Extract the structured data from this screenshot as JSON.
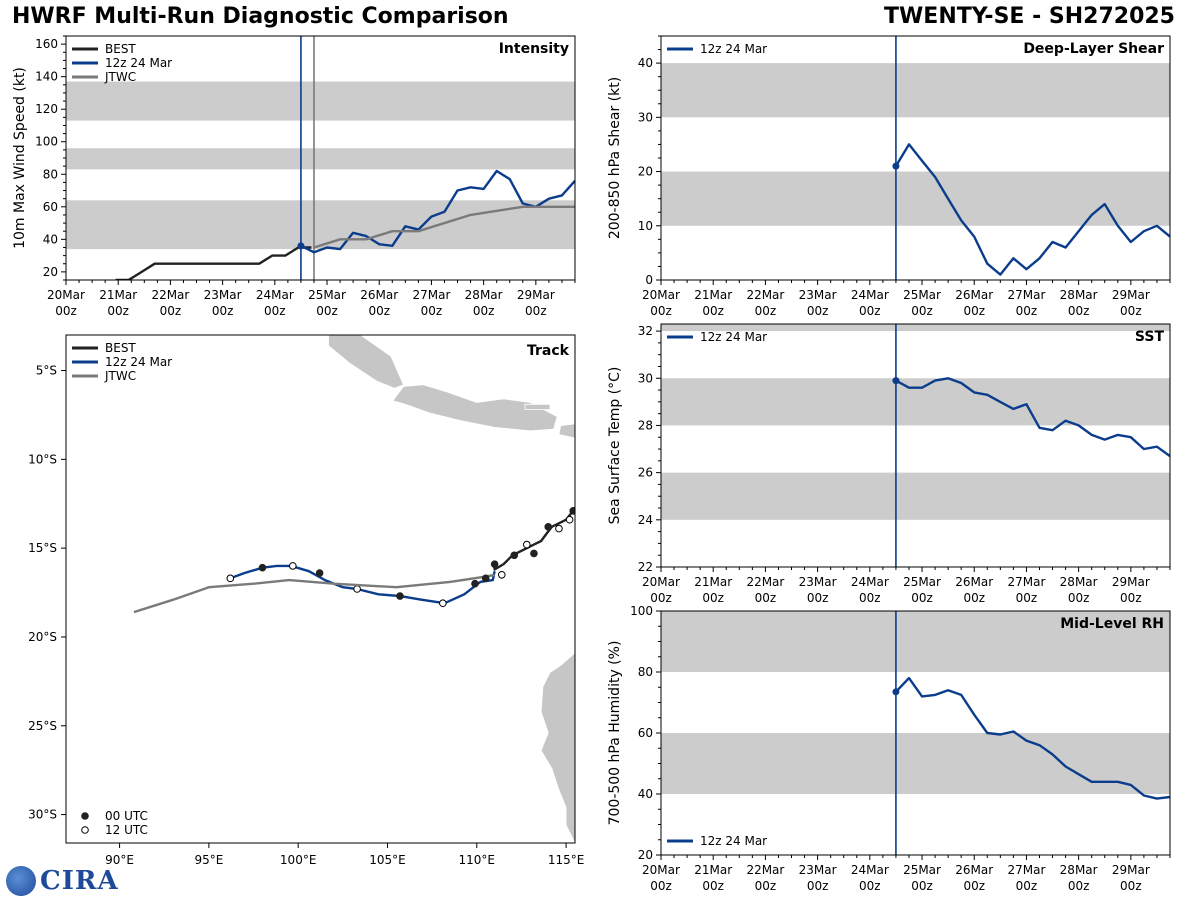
{
  "header": {
    "left_title": "HWRF Multi-Run Diagnostic Comparison",
    "right_title": "TWENTY-SE - SH272025"
  },
  "logo": {
    "text": "CIRA"
  },
  "colors": {
    "best": "#222222",
    "run": "#0b3d8c",
    "jtwc": "#7a7a7a",
    "band": "#cccccc",
    "land": "#c6c6c6"
  },
  "time_axis": {
    "labels": [
      "20Mar",
      "21Mar",
      "22Mar",
      "23Mar",
      "24Mar",
      "25Mar",
      "26Mar",
      "27Mar",
      "28Mar",
      "29Mar"
    ],
    "sublabel": "00z",
    "range_days": [
      0,
      9.75
    ]
  },
  "chart_data": [
    {
      "id": "intensity",
      "type": "line",
      "title": "Intensity",
      "ylabel": "10m Max Wind Speed (kt)",
      "ylim": [
        15,
        165
      ],
      "yticks": [
        20,
        40,
        60,
        80,
        100,
        120,
        140,
        160
      ],
      "bands": [
        [
          34,
          64
        ],
        [
          83,
          96
        ],
        [
          113,
          137
        ]
      ],
      "vlines": [
        {
          "x": 4.5,
          "color": "run"
        },
        {
          "x": 4.75,
          "color": "jtwc"
        }
      ],
      "legend": [
        "BEST",
        "12z 24 Mar",
        "JTWC"
      ],
      "series": [
        {
          "name": "BEST",
          "color": "best",
          "x": [
            0.95,
            1.2,
            1.45,
            1.7,
            1.95,
            2.2,
            2.45,
            2.7,
            2.95,
            3.2,
            3.45,
            3.7,
            3.95,
            4.2,
            4.45,
            4.7
          ],
          "y": [
            15,
            15,
            20,
            25,
            25,
            25,
            25,
            25,
            25,
            25,
            25,
            25,
            30,
            30,
            35,
            35
          ]
        },
        {
          "name": "12z 24 Mar",
          "color": "run",
          "marker_at_start": true,
          "x": [
            4.5,
            4.75,
            5.0,
            5.25,
            5.5,
            5.75,
            6.0,
            6.25,
            6.5,
            6.75,
            7.0,
            7.25,
            7.5,
            7.75,
            8.0,
            8.25,
            8.5,
            8.75,
            9.0,
            9.25,
            9.5,
            9.75
          ],
          "y": [
            36,
            32,
            35,
            34,
            44,
            42,
            37,
            36,
            48,
            46,
            54,
            57,
            70,
            72,
            71,
            82,
            77,
            62,
            60,
            65,
            67,
            76
          ]
        },
        {
          "name": "JTWC",
          "color": "jtwc",
          "x": [
            4.75,
            5.25,
            5.75,
            6.25,
            6.75,
            7.75,
            8.75,
            9.75
          ],
          "y": [
            35,
            40,
            40,
            45,
            45,
            55,
            60,
            60
          ]
        }
      ]
    },
    {
      "id": "shear",
      "type": "line",
      "title": "Deep-Layer Shear",
      "ylabel": "200-850 hPa Shear (kt)",
      "ylim": [
        0,
        45
      ],
      "yticks": [
        0,
        10,
        20,
        30,
        40
      ],
      "bands": [
        [
          10,
          20
        ],
        [
          30,
          40
        ]
      ],
      "vlines": [
        {
          "x": 4.5,
          "color": "run"
        }
      ],
      "legend": [
        "12z 24 Mar"
      ],
      "series": [
        {
          "name": "12z 24 Mar",
          "color": "run",
          "marker_at_start": true,
          "x": [
            4.5,
            4.75,
            5.0,
            5.25,
            5.5,
            5.75,
            6.0,
            6.25,
            6.5,
            6.75,
            7.0,
            7.25,
            7.5,
            7.75,
            8.0,
            8.25,
            8.5,
            8.75,
            9.0,
            9.25,
            9.5,
            9.75
          ],
          "y": [
            21,
            25,
            22,
            19,
            15,
            11,
            8,
            3,
            1,
            4,
            2,
            4,
            7,
            6,
            9,
            12,
            14,
            10,
            7,
            9,
            10,
            8
          ]
        }
      ]
    },
    {
      "id": "sst",
      "type": "line",
      "title": "SST",
      "ylabel": "Sea Surface Temp (°C)",
      "ylim": [
        22,
        32.3
      ],
      "yticks": [
        22,
        24,
        26,
        28,
        30,
        32
      ],
      "bands": [
        [
          24,
          26
        ],
        [
          28,
          30
        ],
        [
          32,
          32.3
        ]
      ],
      "vlines": [
        {
          "x": 4.5,
          "color": "run"
        }
      ],
      "legend": [
        "12z 24 Mar"
      ],
      "series": [
        {
          "name": "12z 24 Mar",
          "color": "run",
          "marker_at_start": true,
          "x": [
            4.5,
            4.75,
            5.0,
            5.25,
            5.5,
            5.75,
            6.0,
            6.25,
            6.5,
            6.75,
            7.0,
            7.25,
            7.5,
            7.75,
            8.0,
            8.25,
            8.5,
            8.75,
            9.0,
            9.25,
            9.5,
            9.75
          ],
          "y": [
            29.9,
            29.6,
            29.6,
            29.9,
            30.0,
            29.8,
            29.4,
            29.3,
            29.0,
            28.7,
            28.9,
            27.9,
            27.8,
            28.2,
            28.0,
            27.6,
            27.4,
            27.6,
            27.5,
            27.0,
            27.1,
            26.7
          ]
        }
      ]
    },
    {
      "id": "rh",
      "type": "line",
      "title": "Mid-Level RH",
      "ylabel": "700-500 hPa Humidity (%)",
      "ylim": [
        20,
        100
      ],
      "yticks": [
        20,
        40,
        60,
        80,
        100
      ],
      "bands": [
        [
          40,
          60
        ],
        [
          80,
          100
        ]
      ],
      "vlines": [
        {
          "x": 4.5,
          "color": "run"
        }
      ],
      "legend": [
        "12z 24 Mar"
      ],
      "legend_position": "bottom-left",
      "series": [
        {
          "name": "12z 24 Mar",
          "color": "run",
          "marker_at_start": true,
          "x": [
            4.5,
            4.75,
            5.0,
            5.25,
            5.5,
            5.75,
            6.0,
            6.25,
            6.5,
            6.75,
            7.0,
            7.25,
            7.5,
            7.75,
            8.0,
            8.25,
            8.5,
            8.75,
            9.0,
            9.25,
            9.5,
            9.75
          ],
          "y": [
            73.5,
            78,
            72,
            72.5,
            74,
            72.5,
            66,
            60,
            59.5,
            60.5,
            57.5,
            56,
            53,
            49,
            46.5,
            44,
            44,
            44,
            43,
            39.5,
            38.5,
            39
          ]
        }
      ]
    },
    {
      "id": "track",
      "type": "line",
      "title": "Track",
      "xlim_lon": [
        87,
        115.5
      ],
      "ylim_lat": [
        -31.6,
        -3
      ],
      "xticks": [
        90,
        95,
        100,
        105,
        110,
        115
      ],
      "xticklabels": [
        "90°E",
        "95°E",
        "100°E",
        "105°E",
        "110°E",
        "115°E"
      ],
      "yticks": [
        -5,
        -10,
        -15,
        -20,
        -25,
        -30
      ],
      "yticklabels": [
        "5°S",
        "10°S",
        "15°S",
        "20°S",
        "25°S",
        "30°S"
      ],
      "legend": [
        "BEST",
        "12z 24 Mar",
        "JTWC"
      ],
      "marker_legend": [
        "00 UTC",
        "12 UTC"
      ],
      "series": [
        {
          "name": "BEST",
          "color": "best",
          "lon": [
            115.4,
            115.0,
            114.6,
            114.2,
            113.9,
            113.6,
            113.2,
            112.6,
            112.0,
            111.5,
            111.0,
            111.0
          ],
          "lat": [
            -12.9,
            -13.4,
            -13.6,
            -13.8,
            -14.2,
            -14.6,
            -14.8,
            -15.1,
            -15.4,
            -15.9,
            -16.2,
            -15.9
          ],
          "dots_00z": [
            [
              115.4,
              -12.9
            ],
            [
              114.0,
              -13.8
            ],
            [
              113.2,
              -15.3
            ],
            [
              112.1,
              -15.4
            ],
            [
              111.0,
              -15.9
            ]
          ],
          "dots_12z": [
            [
              115.2,
              -13.4
            ],
            [
              114.6,
              -13.9
            ],
            [
              112.8,
              -14.8
            ]
          ]
        },
        {
          "name": "12z 24 Mar",
          "color": "run",
          "lon": [
            96.2,
            97.0,
            98.0,
            98.8,
            99.6,
            100.6,
            101.5,
            102.5,
            103.3,
            104.5,
            105.7,
            106.9,
            108.2,
            109.3,
            110.2,
            110.9,
            111.0
          ],
          "lat": [
            -16.7,
            -16.4,
            -16.1,
            -16.0,
            -16.0,
            -16.3,
            -16.8,
            -17.2,
            -17.3,
            -17.6,
            -17.7,
            -17.9,
            -18.1,
            -17.6,
            -16.9,
            -16.8,
            -16.3
          ],
          "dots_00z": [
            [
              98.0,
              -16.1
            ],
            [
              101.2,
              -16.4
            ],
            [
              105.7,
              -17.7
            ],
            [
              109.9,
              -17.0
            ]
          ],
          "dots_12z": [
            [
              96.2,
              -16.7
            ],
            [
              99.7,
              -16.0
            ],
            [
              103.3,
              -17.3
            ],
            [
              108.1,
              -18.1
            ]
          ]
        },
        {
          "name": "JTWC",
          "color": "jtwc",
          "lon": [
            90.8,
            93.0,
            95.0,
            97.5,
            99.5,
            102.0,
            105.5,
            108.5,
            110.5,
            111.0
          ],
          "lat": [
            -18.6,
            -17.9,
            -17.2,
            -17.0,
            -16.8,
            -17.0,
            -17.2,
            -16.9,
            -16.6,
            -16.5
          ],
          "dots_00z": [
            [
              110.5,
              -16.7
            ]
          ],
          "dots_12z": [
            [
              111.4,
              -16.5
            ]
          ]
        }
      ]
    }
  ]
}
